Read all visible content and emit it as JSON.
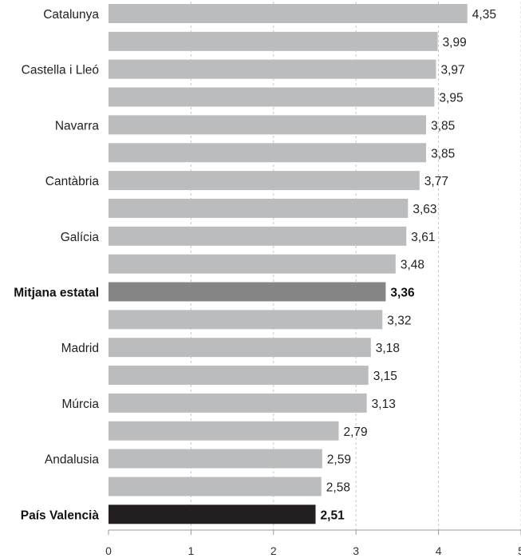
{
  "chart_data": {
    "type": "bar",
    "orientation": "horizontal",
    "categories": [
      "Catalunya",
      "",
      "Castella i Lleó",
      "",
      "Navarra",
      "",
      "Cantàbria",
      "",
      "Galícia",
      "",
      "Mitjana estatal",
      "",
      "Madrid",
      "",
      "Múrcia",
      "",
      "Andalusia",
      "",
      "País Valencià"
    ],
    "values": [
      4.35,
      3.99,
      3.97,
      3.95,
      3.85,
      3.85,
      3.77,
      3.63,
      3.61,
      3.48,
      3.36,
      3.32,
      3.18,
      3.15,
      3.13,
      2.79,
      2.59,
      2.58,
      2.51
    ],
    "value_labels": [
      "4,35",
      "3,99",
      "3,97",
      "3,95",
      "3,85",
      "3,85",
      "3,77",
      "3,63",
      "3,61",
      "3,48",
      "3,36",
      "3,32",
      "3,18",
      "3,15",
      "3,13",
      "2,79",
      "2,59",
      "2,58",
      "2,51"
    ],
    "highlighted": {
      "Mitjana estatal": "#858585",
      "País Valencià": "#231f20"
    },
    "bar_color": "#bbbcbe",
    "xlim": [
      0,
      5
    ],
    "xticks": [
      "0",
      "1",
      "2",
      "3",
      "4",
      "5"
    ],
    "grid": true,
    "grid_style": "dashed-vertical",
    "title": "",
    "xlabel": "",
    "ylabel": ""
  }
}
